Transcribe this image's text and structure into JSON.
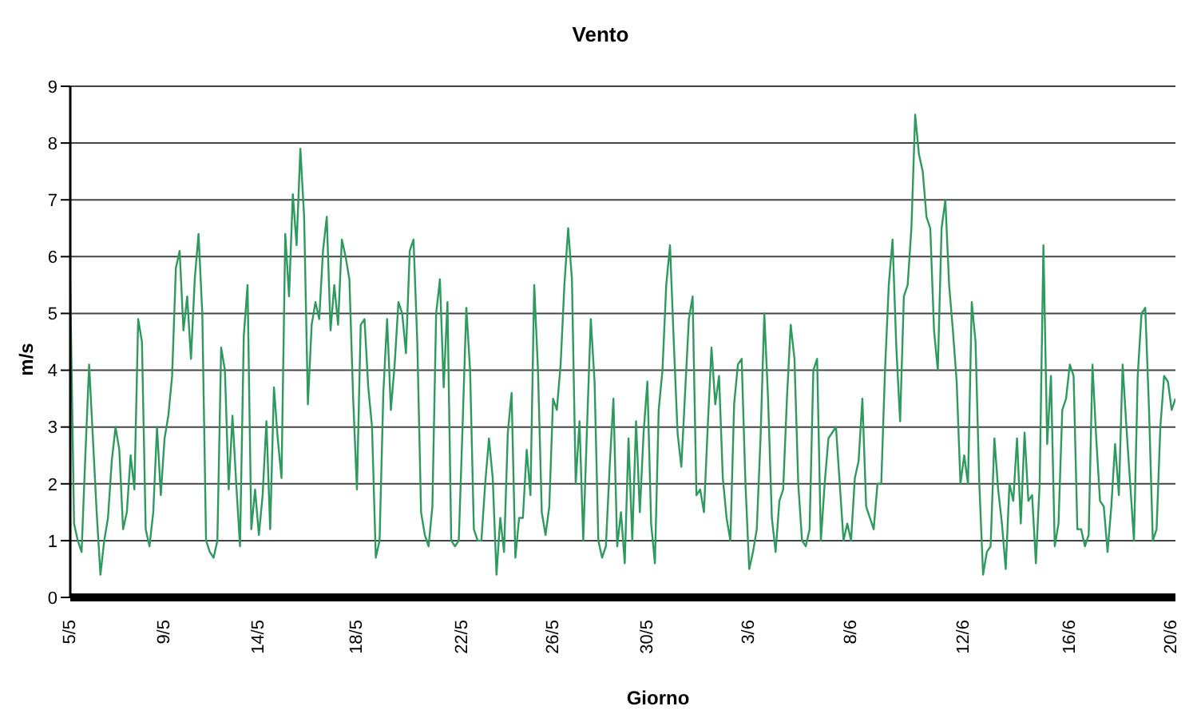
{
  "chart_data": {
    "type": "line",
    "title": "Vento",
    "xlabel": "Giorno",
    "ylabel": "m/s",
    "categories": [
      "5/5",
      null,
      null,
      null,
      null,
      null,
      null,
      null,
      null,
      null,
      null,
      null,
      null,
      null,
      null,
      null,
      null,
      null,
      null,
      null,
      null,
      null,
      null,
      null,
      null,
      "9/5",
      null,
      null,
      null,
      null,
      null,
      null,
      null,
      null,
      null,
      null,
      null,
      null,
      null,
      null,
      null,
      null,
      null,
      null,
      null,
      null,
      null,
      null,
      null,
      null,
      "14/5",
      null,
      null,
      null,
      null,
      null,
      null,
      null,
      null,
      null,
      null,
      null,
      null,
      null,
      null,
      null,
      null,
      null,
      null,
      null,
      null,
      null,
      null,
      null,
      null,
      null,
      "18/5",
      null,
      null,
      null,
      null,
      null,
      null,
      null,
      null,
      null,
      null,
      null,
      null,
      null,
      null,
      null,
      null,
      null,
      null,
      null,
      null,
      null,
      null,
      null,
      null,
      null,
      null,
      null,
      "22/5",
      null,
      null,
      null,
      null,
      null,
      null,
      null,
      null,
      null,
      null,
      null,
      null,
      null,
      null,
      null,
      null,
      null,
      null,
      null,
      null,
      null,
      null,
      null,
      "26/5",
      null,
      null,
      null,
      null,
      null,
      null,
      null,
      null,
      null,
      null,
      null,
      null,
      null,
      null,
      null,
      null,
      null,
      null,
      null,
      null,
      null,
      null,
      null,
      null,
      "30/5",
      null,
      null,
      null,
      null,
      null,
      null,
      null,
      null,
      null,
      null,
      null,
      null,
      null,
      null,
      null,
      null,
      null,
      null,
      null,
      null,
      null,
      null,
      null,
      null,
      null,
      null,
      "3/6",
      null,
      null,
      null,
      null,
      null,
      null,
      null,
      null,
      null,
      null,
      null,
      null,
      null,
      null,
      null,
      null,
      null,
      null,
      null,
      null,
      null,
      null,
      null,
      null,
      null,
      null,
      "8/6",
      null,
      null,
      null,
      null,
      null,
      null,
      null,
      null,
      null,
      null,
      null,
      null,
      null,
      null,
      null,
      null,
      null,
      null,
      null,
      null,
      null,
      null,
      null,
      null,
      null,
      null,
      null,
      null,
      null,
      "12/6",
      null,
      null,
      null,
      null,
      null,
      null,
      null,
      null,
      null,
      null,
      null,
      null,
      null,
      null,
      null,
      null,
      null,
      null,
      null,
      null,
      null,
      null,
      null,
      null,
      null,
      null,
      null,
      "16/6",
      null,
      null,
      null,
      null,
      null,
      null,
      null,
      null,
      null,
      null,
      null,
      null,
      null,
      null,
      null,
      null,
      null,
      null,
      null,
      null,
      null,
      null,
      null,
      null,
      null,
      null,
      "20/6",
      null
    ],
    "series": [
      {
        "color": "#2e9a5e",
        "values": [
          5.5,
          1.3,
          1.0,
          0.8,
          2.5,
          4.1,
          2.8,
          1.5,
          0.4,
          1.0,
          1.4,
          2.4,
          3.0,
          2.6,
          1.2,
          1.5,
          2.5,
          1.9,
          4.9,
          4.5,
          1.2,
          0.9,
          1.5,
          3.0,
          1.8,
          2.8,
          3.2,
          3.9,
          5.8,
          6.1,
          4.7,
          5.3,
          4.2,
          5.6,
          6.4,
          5.0,
          1.0,
          0.8,
          0.7,
          1.0,
          4.4,
          4.0,
          1.9,
          3.2,
          2.0,
          0.9,
          4.6,
          5.5,
          1.2,
          1.9,
          1.1,
          1.8,
          3.1,
          1.2,
          3.7,
          2.8,
          2.1,
          6.4,
          5.3,
          7.1,
          6.2,
          7.9,
          6.7,
          3.4,
          4.8,
          5.2,
          4.9,
          6.1,
          6.7,
          4.7,
          5.5,
          4.8,
          6.3,
          6.0,
          5.6,
          3.5,
          1.9,
          4.8,
          4.9,
          3.7,
          3.0,
          0.7,
          1.0,
          3.6,
          4.9,
          3.3,
          4.1,
          5.2,
          5.0,
          4.3,
          6.1,
          6.3,
          4.5,
          1.5,
          1.1,
          0.9,
          1.6,
          5.0,
          5.6,
          3.7,
          5.2,
          1.0,
          0.9,
          1.0,
          3.0,
          5.1,
          4.0,
          1.2,
          1.0,
          1.0,
          2.0,
          2.8,
          2.1,
          0.4,
          1.4,
          0.8,
          2.9,
          3.6,
          0.7,
          1.4,
          1.4,
          2.6,
          1.8,
          5.5,
          4.0,
          1.5,
          1.1,
          1.6,
          3.5,
          3.3,
          4.1,
          5.5,
          6.5,
          5.6,
          2.0,
          3.1,
          1.0,
          3.0,
          4.9,
          3.8,
          1.0,
          0.7,
          0.9,
          2.3,
          3.5,
          0.9,
          1.5,
          0.6,
          2.8,
          1.0,
          3.1,
          1.5,
          2.9,
          3.8,
          1.3,
          0.6,
          3.3,
          4.0,
          5.5,
          6.2,
          4.5,
          2.9,
          2.3,
          3.6,
          4.9,
          5.3,
          1.8,
          1.9,
          1.5,
          3.0,
          4.4,
          3.4,
          3.9,
          2.1,
          1.4,
          1.0,
          3.4,
          4.1,
          4.2,
          2.0,
          0.5,
          0.8,
          1.2,
          2.8,
          5.0,
          3.5,
          1.4,
          0.8,
          1.7,
          1.9,
          3.5,
          4.8,
          4.2,
          2.0,
          1.0,
          0.9,
          1.2,
          4.0,
          4.2,
          1.0,
          2.0,
          2.8,
          2.9,
          3.0,
          2.0,
          1.0,
          1.3,
          1.0,
          2.1,
          2.4,
          3.5,
          1.6,
          1.4,
          1.2,
          2.0,
          2.0,
          4.0,
          5.5,
          6.3,
          4.4,
          3.1,
          5.3,
          5.5,
          6.5,
          8.5,
          7.8,
          7.5,
          6.7,
          6.5,
          4.7,
          4.0,
          6.5,
          7.0,
          5.5,
          4.7,
          3.8,
          2.0,
          2.5,
          2.0,
          5.2,
          4.5,
          2.0,
          0.4,
          0.8,
          0.9,
          2.8,
          1.9,
          1.3,
          0.5,
          2.0,
          1.7,
          2.8,
          1.3,
          2.9,
          1.7,
          1.8,
          0.6,
          2.0,
          6.2,
          2.7,
          3.9,
          0.9,
          1.3,
          3.3,
          3.5,
          4.1,
          3.9,
          1.2,
          1.2,
          0.9,
          1.1,
          4.1,
          2.8,
          1.7,
          1.6,
          0.8,
          1.6,
          2.7,
          1.8,
          4.1,
          3.0,
          2.0,
          1.0,
          3.9,
          5.0,
          5.1,
          3.3,
          1.0,
          1.2,
          3.0,
          3.9,
          3.8,
          3.3,
          3.5
        ]
      }
    ],
    "ylim": [
      0,
      9
    ],
    "yticks": [
      0,
      1,
      2,
      3,
      4,
      5,
      6,
      7,
      8,
      9
    ],
    "grid": "y",
    "legend": false,
    "marker": "none",
    "line_style": "solid"
  }
}
